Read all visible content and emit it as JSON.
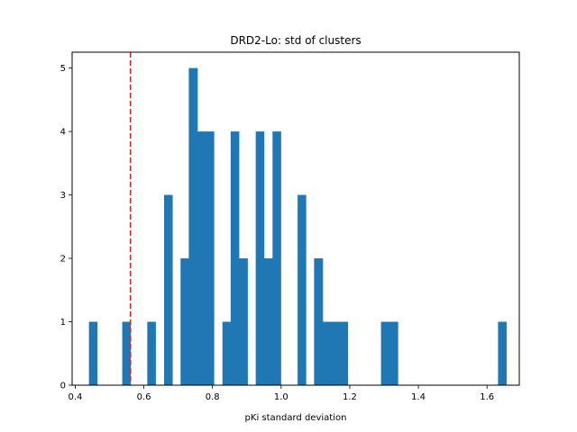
{
  "chart_data": {
    "type": "histogram",
    "title": "DRD2-Lo: std of clusters",
    "xlabel": "pKi standard deviation",
    "ylabel": "",
    "xlim": [
      0.391,
      1.694
    ],
    "ylim": [
      0,
      5.25
    ],
    "xticks": [
      0.4,
      0.6,
      0.8,
      1.0,
      1.2,
      1.4,
      1.6
    ],
    "xtick_labels": [
      "0.4",
      "0.6",
      "0.8",
      "1.0",
      "1.2",
      "1.4",
      "1.6"
    ],
    "yticks": [
      0,
      1,
      2,
      3,
      4,
      5
    ],
    "ytick_labels": [
      "0",
      "1",
      "2",
      "3",
      "4",
      "5"
    ],
    "bar_color": "#1f77b4",
    "threshold_line": {
      "x": 0.561,
      "color": "#d62728",
      "style": "dashed"
    },
    "bins": [
      {
        "x0": 0.44,
        "x1": 0.464,
        "count": 1
      },
      {
        "x0": 0.537,
        "x1": 0.561,
        "count": 1
      },
      {
        "x0": 0.61,
        "x1": 0.634,
        "count": 1
      },
      {
        "x0": 0.659,
        "x1": 0.683,
        "count": 3
      },
      {
        "x0": 0.707,
        "x1": 0.731,
        "count": 2
      },
      {
        "x0": 0.731,
        "x1": 0.756,
        "count": 5
      },
      {
        "x0": 0.756,
        "x1": 0.78,
        "count": 4
      },
      {
        "x0": 0.78,
        "x1": 0.804,
        "count": 4
      },
      {
        "x0": 0.829,
        "x1": 0.853,
        "count": 1
      },
      {
        "x0": 0.853,
        "x1": 0.877,
        "count": 4
      },
      {
        "x0": 0.877,
        "x1": 0.902,
        "count": 2
      },
      {
        "x0": 0.926,
        "x1": 0.95,
        "count": 4
      },
      {
        "x0": 0.95,
        "x1": 0.975,
        "count": 2
      },
      {
        "x0": 0.975,
        "x1": 0.999,
        "count": 4
      },
      {
        "x0": 1.048,
        "x1": 1.072,
        "count": 3
      },
      {
        "x0": 1.096,
        "x1": 1.121,
        "count": 2
      },
      {
        "x0": 1.121,
        "x1": 1.145,
        "count": 1
      },
      {
        "x0": 1.145,
        "x1": 1.169,
        "count": 1
      },
      {
        "x0": 1.169,
        "x1": 1.194,
        "count": 1
      },
      {
        "x0": 1.291,
        "x1": 1.315,
        "count": 1
      },
      {
        "x0": 1.315,
        "x1": 1.34,
        "count": 1
      },
      {
        "x0": 1.632,
        "x1": 1.656,
        "count": 1
      }
    ]
  }
}
